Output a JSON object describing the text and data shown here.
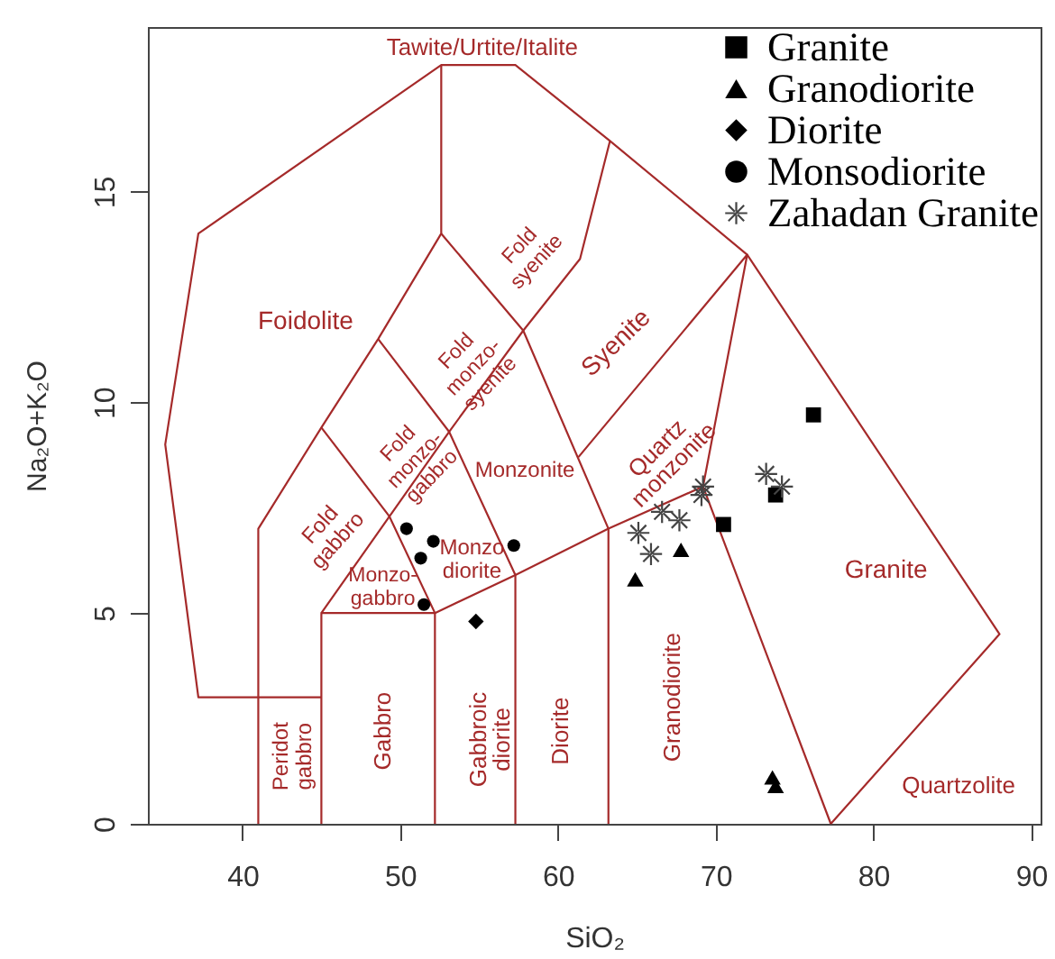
{
  "chart_data": {
    "type": "scatter",
    "xlabel": "SiO₂",
    "ylabel": "Na₂O+K₂O",
    "xlim": [
      34,
      90.6
    ],
    "ylim": [
      0,
      18.9
    ],
    "xticks": [
      40,
      50,
      60,
      70,
      80,
      90
    ],
    "yticks": [
      0,
      5,
      10,
      15
    ],
    "legend": "top right",
    "series": [
      {
        "type": "line",
        "color": "#a52a2a",
        "x": [
          45,
          37.2,
          35.1,
          37.2,
          52.6,
          57.3,
          63.3,
          72,
          88,
          77.3
        ],
        "values": [
          3,
          3,
          9,
          14,
          18,
          18,
          16.2,
          13.5,
          4.5,
          0
        ]
      },
      {
        "type": "line",
        "color": "#a52a2a",
        "x": [
          41,
          41,
          45,
          48.6,
          52.6,
          52.6
        ],
        "values": [
          0,
          7,
          9.4,
          11.5,
          14,
          18
        ]
      },
      {
        "type": "line",
        "color": "#a52a2a",
        "x": [
          45,
          45,
          52.2,
          57.3,
          63.2,
          69.2,
          77.3
        ],
        "values": [
          0,
          5,
          5,
          5.9,
          7,
          8,
          0
        ]
      },
      {
        "type": "line",
        "color": "#a52a2a",
        "x": [
          48.6,
          53.1,
          57.3,
          57.3
        ],
        "values": [
          11.5,
          9.3,
          5.9,
          0
        ]
      },
      {
        "type": "line",
        "color": "#a52a2a",
        "x": [
          52.6,
          57.8,
          63.2,
          63.2
        ],
        "values": [
          14,
          11.7,
          7,
          0
        ]
      },
      {
        "type": "line",
        "color": "#a52a2a",
        "x": [
          45,
          53.1,
          57.8,
          61.4,
          63.3
        ],
        "values": [
          5,
          9.3,
          11.7,
          13.4,
          16.2
        ]
      },
      {
        "type": "line",
        "color": "#a52a2a",
        "x": [
          45,
          49.3,
          52.2,
          52.2
        ],
        "values": [
          9.4,
          7.3,
          5,
          0
        ]
      },
      {
        "type": "line",
        "color": "#a52a2a",
        "x": [
          61.3,
          72,
          69.2
        ],
        "values": [
          8.7,
          13.5,
          8
        ]
      },
      {
        "name": "Granite",
        "color": "#000000",
        "marker": "square",
        "x": [
          76.2,
          73.8,
          70.5
        ],
        "values": [
          9.7,
          7.8,
          7.1
        ]
      },
      {
        "name": "Granodiorite",
        "color": "#000000",
        "marker": "triangle",
        "x": [
          67.8,
          64.9,
          73.6,
          73.8
        ],
        "values": [
          6.5,
          5.8,
          1.1,
          0.9
        ]
      },
      {
        "name": "Diorite",
        "color": "#000000",
        "marker": "diamond",
        "x": [
          54.8
        ],
        "values": [
          4.8
        ]
      },
      {
        "name": "Monsodiorite",
        "color": "#000000",
        "marker": "circle",
        "x": [
          50.4,
          52.1,
          51.3,
          51.5,
          57.2
        ],
        "values": [
          7.0,
          6.7,
          6.3,
          5.2,
          6.6
        ]
      },
      {
        "name": "Zahadan Granite",
        "color": "#444444",
        "marker": "star",
        "x": [
          69.2,
          69.1,
          73.2,
          74.2,
          66.6,
          67.7,
          65.1,
          65.9
        ],
        "values": [
          8.0,
          7.8,
          8.3,
          8.0,
          7.4,
          7.2,
          6.9,
          6.4
        ]
      }
    ],
    "annotations": [
      "Tawite/Urtite/Italite",
      "Foidolite",
      "Fold\nsyenite",
      "Fold\nmonzo-\nsyenite",
      "Fold\nmonzo-\ngabbro",
      "Fold\ngabbro",
      "Syenite",
      "Quartz\nmonzonite",
      "Monzonite",
      "Monzo\ndiorite",
      "Monzo-\ngabbro",
      "Peridot\ngabbro",
      "Gabbro",
      "Gabbroic\ndiorite",
      "Diorite",
      "Granodiorite",
      "Granite",
      "Quartzolite"
    ]
  }
}
